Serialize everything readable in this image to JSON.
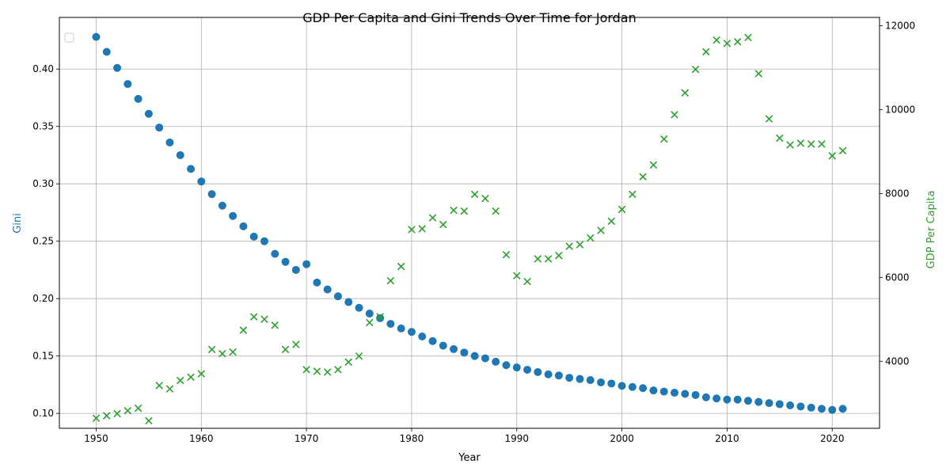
{
  "chart_data": {
    "type": "scatter",
    "title": "GDP Per Capita and Gini Trends Over Time for Jordan",
    "xlabel": "Year",
    "ylabel_left": "Gini",
    "ylabel_right": "GDP Per Capita",
    "xlim": [
      1946.5,
      2024.5
    ],
    "ylim_left": [
      0.087,
      0.445
    ],
    "ylim_right": [
      2400,
      12200
    ],
    "x_ticks": [
      1950,
      1960,
      1970,
      1980,
      1990,
      2000,
      2010,
      2020
    ],
    "y_ticks_left": [
      0.1,
      0.15,
      0.2,
      0.25,
      0.3,
      0.35,
      0.4
    ],
    "y_ticks_left_labels": [
      "0.10",
      "0.15",
      "0.20",
      "0.25",
      "0.30",
      "0.35",
      "0.40"
    ],
    "y_ticks_right": [
      4000,
      6000,
      8000,
      10000,
      12000
    ],
    "grid": true,
    "legend": "top-left (empty)",
    "x": [
      1950,
      1951,
      1952,
      1953,
      1954,
      1955,
      1956,
      1957,
      1958,
      1959,
      1960,
      1961,
      1962,
      1963,
      1964,
      1965,
      1966,
      1967,
      1968,
      1969,
      1970,
      1971,
      1972,
      1973,
      1974,
      1975,
      1976,
      1977,
      1978,
      1979,
      1980,
      1981,
      1982,
      1983,
      1984,
      1985,
      1986,
      1987,
      1988,
      1989,
      1990,
      1991,
      1992,
      1993,
      1994,
      1995,
      1996,
      1997,
      1998,
      1999,
      2000,
      2001,
      2002,
      2003,
      2004,
      2005,
      2006,
      2007,
      2008,
      2009,
      2010,
      2011,
      2012,
      2013,
      2014,
      2015,
      2016,
      2017,
      2018,
      2019,
      2020,
      2021
    ],
    "series": [
      {
        "name": "Gini",
        "axis": "left",
        "marker": "circle",
        "color": "#1f77b4",
        "values": [
          0.428,
          0.415,
          0.401,
          0.387,
          0.374,
          0.361,
          0.349,
          0.336,
          0.325,
          0.313,
          0.302,
          0.291,
          0.281,
          0.272,
          0.263,
          0.254,
          0.25,
          0.239,
          0.232,
          0.225,
          0.23,
          0.214,
          0.208,
          0.202,
          0.197,
          0.192,
          0.187,
          0.183,
          0.178,
          0.174,
          0.171,
          0.167,
          0.163,
          0.159,
          0.156,
          0.153,
          0.15,
          0.148,
          0.145,
          0.142,
          0.14,
          0.138,
          0.136,
          0.134,
          0.133,
          0.131,
          0.13,
          0.129,
          0.127,
          0.126,
          0.124,
          0.123,
          0.122,
          0.12,
          0.119,
          0.118,
          0.117,
          0.116,
          0.114,
          0.113,
          0.112,
          0.112,
          0.111,
          0.11,
          0.109,
          0.108,
          0.107,
          0.106,
          0.105,
          0.104,
          0.103,
          0.104
        ]
      },
      {
        "name": "GDP Per Capita",
        "axis": "right",
        "marker": "x",
        "color": "#2ca02c",
        "values": [
          2640,
          2700,
          2750,
          2820,
          2880,
          2580,
          3420,
          3340,
          3540,
          3620,
          3700,
          4280,
          4180,
          4220,
          4740,
          5060,
          5000,
          4860,
          4280,
          4400,
          3800,
          3760,
          3740,
          3800,
          3980,
          4120,
          4920,
          5060,
          5920,
          6260,
          7140,
          7160,
          7420,
          7260,
          7600,
          7580,
          7980,
          7880,
          7580,
          6540,
          6040,
          5900,
          6440,
          6440,
          6520,
          6740,
          6780,
          6940,
          7120,
          7340,
          7620,
          7980,
          8400,
          8680,
          9300,
          9880,
          10400,
          10960,
          11380,
          11660,
          11580,
          11620,
          11720,
          10860,
          9780,
          9320,
          9160,
          9200,
          9180,
          9180,
          8900,
          9020
        ]
      }
    ]
  }
}
